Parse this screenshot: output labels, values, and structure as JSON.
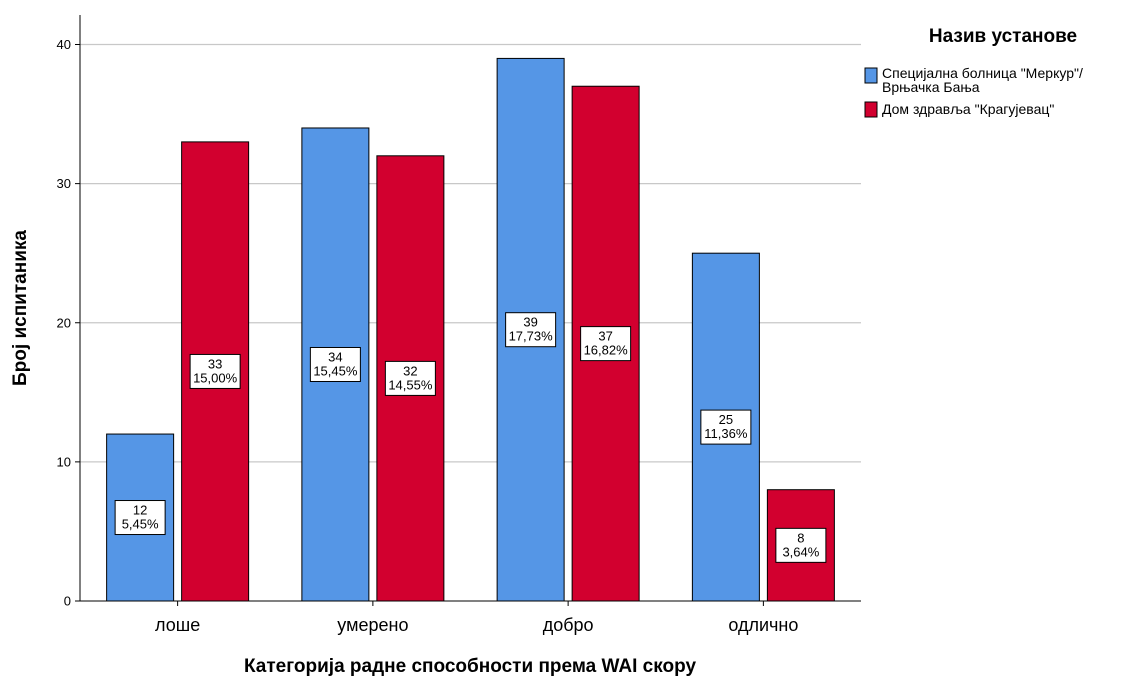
{
  "chart_data": {
    "type": "bar",
    "title": "",
    "xlabel": "Категорија радне способности према WAI скору",
    "ylabel": "Број испитаника",
    "categories": [
      "лоше",
      "умерено",
      "добро",
      "одлично"
    ],
    "ylim": [
      0,
      40
    ],
    "yticks": [
      0,
      10,
      20,
      30,
      40
    ],
    "grid": true,
    "legend": {
      "title": "Назив установе",
      "placement": "top-right"
    },
    "series": [
      {
        "name_lines": [
          "Специјална болница \"Меркур\"/",
          "Врњачка Бања"
        ],
        "color": "#5596E6",
        "values": [
          12,
          34,
          39,
          25
        ],
        "labels": [
          [
            "12",
            "5,45%"
          ],
          [
            "34",
            "15,45%"
          ],
          [
            "39",
            "17,73%"
          ],
          [
            "25",
            "11,36%"
          ]
        ]
      },
      {
        "name_lines": [
          "Дом здравља \"Крагујевац\""
        ],
        "color": "#D2002F",
        "values": [
          33,
          32,
          37,
          8
        ],
        "labels": [
          [
            "33",
            "15,00%"
          ],
          [
            "32",
            "14,55%"
          ],
          [
            "37",
            "16,82%"
          ],
          [
            "8",
            "3,64%"
          ]
        ]
      }
    ]
  }
}
